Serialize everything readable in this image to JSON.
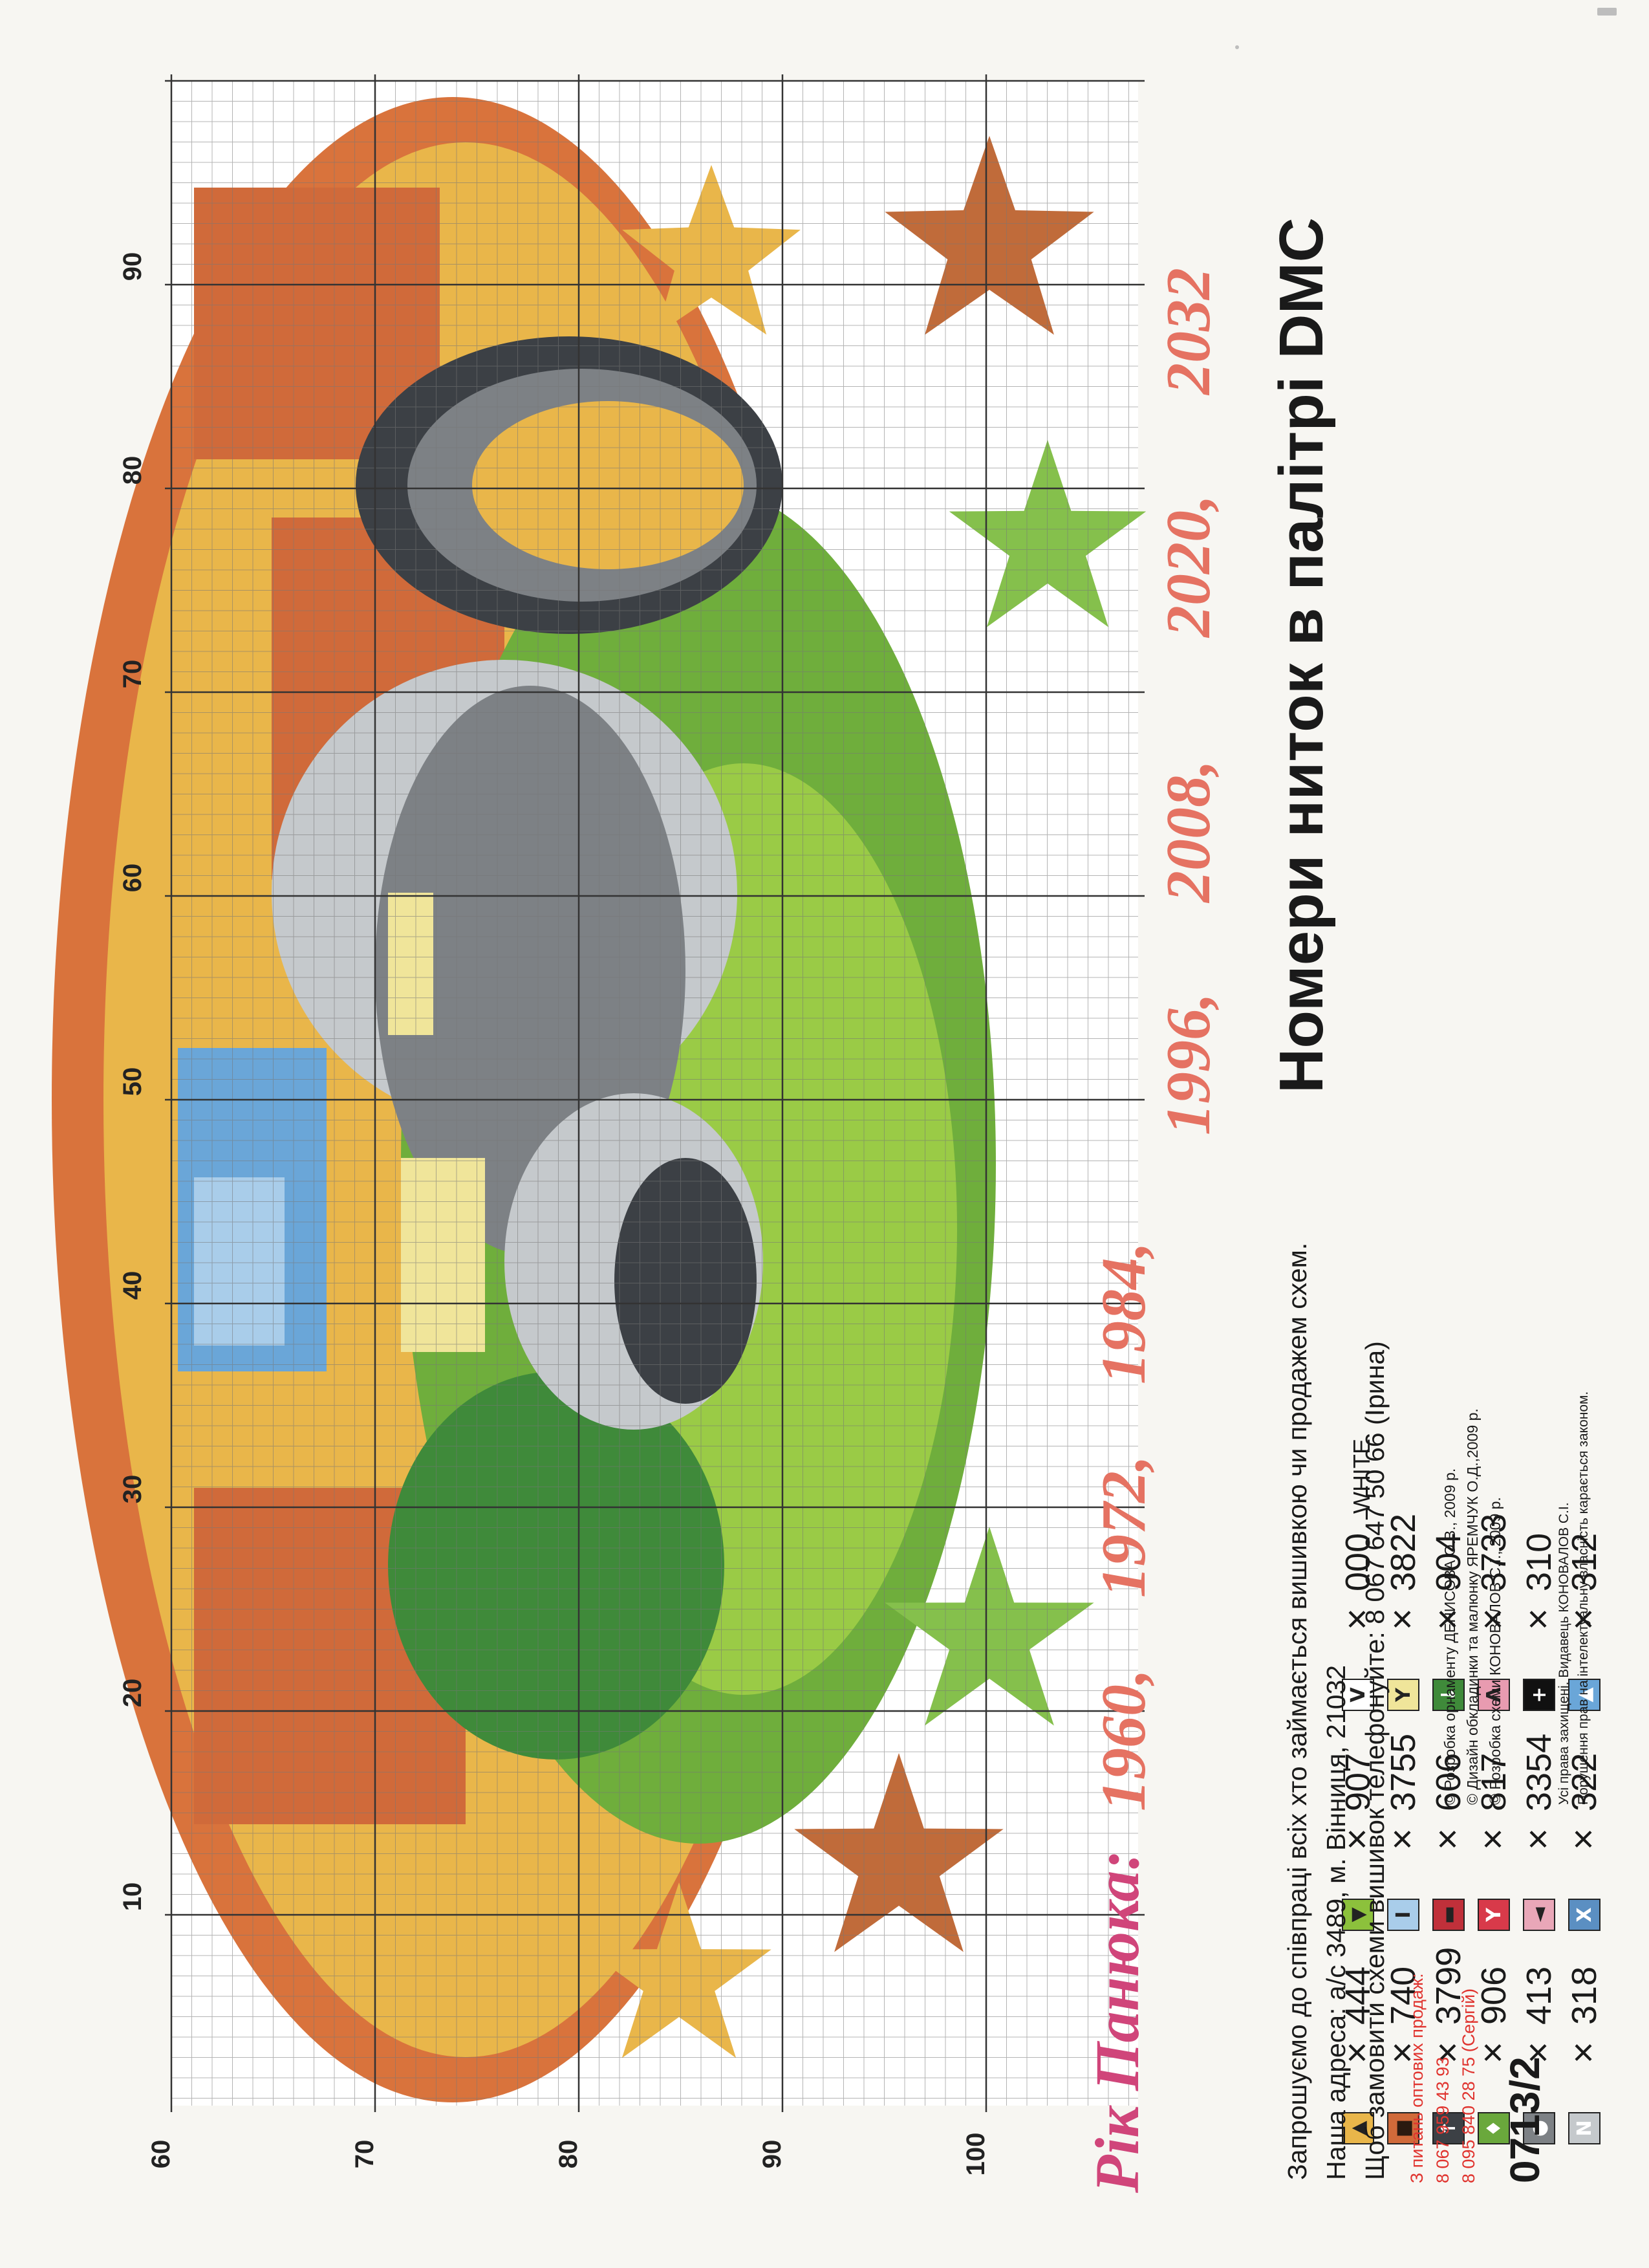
{
  "chart_title_script": "Рік Панюка:",
  "years": [
    "1960,",
    "1972,",
    "1984,",
    "1996,",
    "2008,",
    "2020,",
    "2032"
  ],
  "legend_title": "Номери ниток в палітрі DMC",
  "legend": [
    {
      "symbol": "▲",
      "bg": "#e9b64a",
      "fg": "#222222",
      "code": "444"
    },
    {
      "symbol": "■",
      "bg": "#d06a3a",
      "fg": "#2b1a10",
      "code": "740"
    },
    {
      "symbol": "↑",
      "bg": "#3c4045",
      "fg": "#ffffff",
      "code": "3799"
    },
    {
      "symbol": "♦",
      "bg": "#6aa83c",
      "fg": "#ffffff",
      "code": "906"
    },
    {
      "symbol": "●",
      "bg": "#7d8185",
      "fg": "#ffffff",
      "code": "413"
    },
    {
      "symbol": "N",
      "bg": "#c5c9cc",
      "fg": "#ffffff",
      "code": "318"
    },
    {
      "symbol": "▼",
      "bg": "#8cc13c",
      "fg": "#222222",
      "code": "907"
    },
    {
      "symbol": "I",
      "bg": "#a9cdea",
      "fg": "#222222",
      "code": "3755"
    },
    {
      "symbol": "▬",
      "bg": "#c0303a",
      "fg": "#222222",
      "code": "606"
    },
    {
      "symbol": "Y",
      "bg": "#d83a4a",
      "fg": "#ffffff",
      "code": "817"
    },
    {
      "symbol": "◄",
      "bg": "#e9a7b8",
      "fg": "#222222",
      "code": "3354"
    },
    {
      "symbol": "X",
      "bg": "#5b8fc2",
      "fg": "#ffffff",
      "code": "322"
    },
    {
      "symbol": "V",
      "bg": "#ffffff",
      "fg": "#222222",
      "code": "000",
      "extra": "WHITE"
    },
    {
      "symbol": "Y",
      "bg": "#f0e59a",
      "fg": "#222222",
      "code": "3822"
    },
    {
      "symbol": "↓",
      "bg": "#3f8a3a",
      "fg": "#ffffff",
      "code": "904"
    },
    {
      "symbol": "Λ",
      "bg": "#e89bb0",
      "fg": "#222222",
      "code": "3733"
    },
    {
      "symbol": "+",
      "bg": "#111111",
      "fg": "#ffffff",
      "code": "310"
    },
    {
      "symbol": "▲",
      "bg": "#6aa6d8",
      "fg": "#ffffff",
      "code": "312"
    }
  ],
  "x_axis_labels": [
    "10",
    "20",
    "30",
    "40",
    "50",
    "60",
    "70",
    "80",
    "90"
  ],
  "y_axis_labels": [
    "60",
    "70",
    "80",
    "90",
    "100"
  ],
  "cooperation": {
    "line1": "Запрошуємо до співпраці всіх хто займається вишивкою чи продажем схем.",
    "line2": "Наша адреса: а/с 3489, м. Вінниця, 21032",
    "line3": "Щоб замовити схеми вишивок телефонуйте: 8 067 647 50 66 (Ірина)"
  },
  "credits": [
    "© Розробка орнаменту ДЕНИСОВА О.В., 2009 р.",
    "© Дизайн обкладинки та малюнку ЯРЕМЧУК О.Д.,2009 р.",
    "© Розробка схеми КОНОВАЛОВ С.І., 2009 р."
  ],
  "rights": [
    "Усі права захищені. Видавець КОНОВАЛОВ С.І.",
    "Порушення прав на інтелектуальну власність карається законом."
  ],
  "wholesale": {
    "title": "З питань оптових продаж:",
    "phone1": "8 067 959 43 93",
    "phone2": "8 095 840 28 75 (Сергій)"
  },
  "code": "0713/2"
}
